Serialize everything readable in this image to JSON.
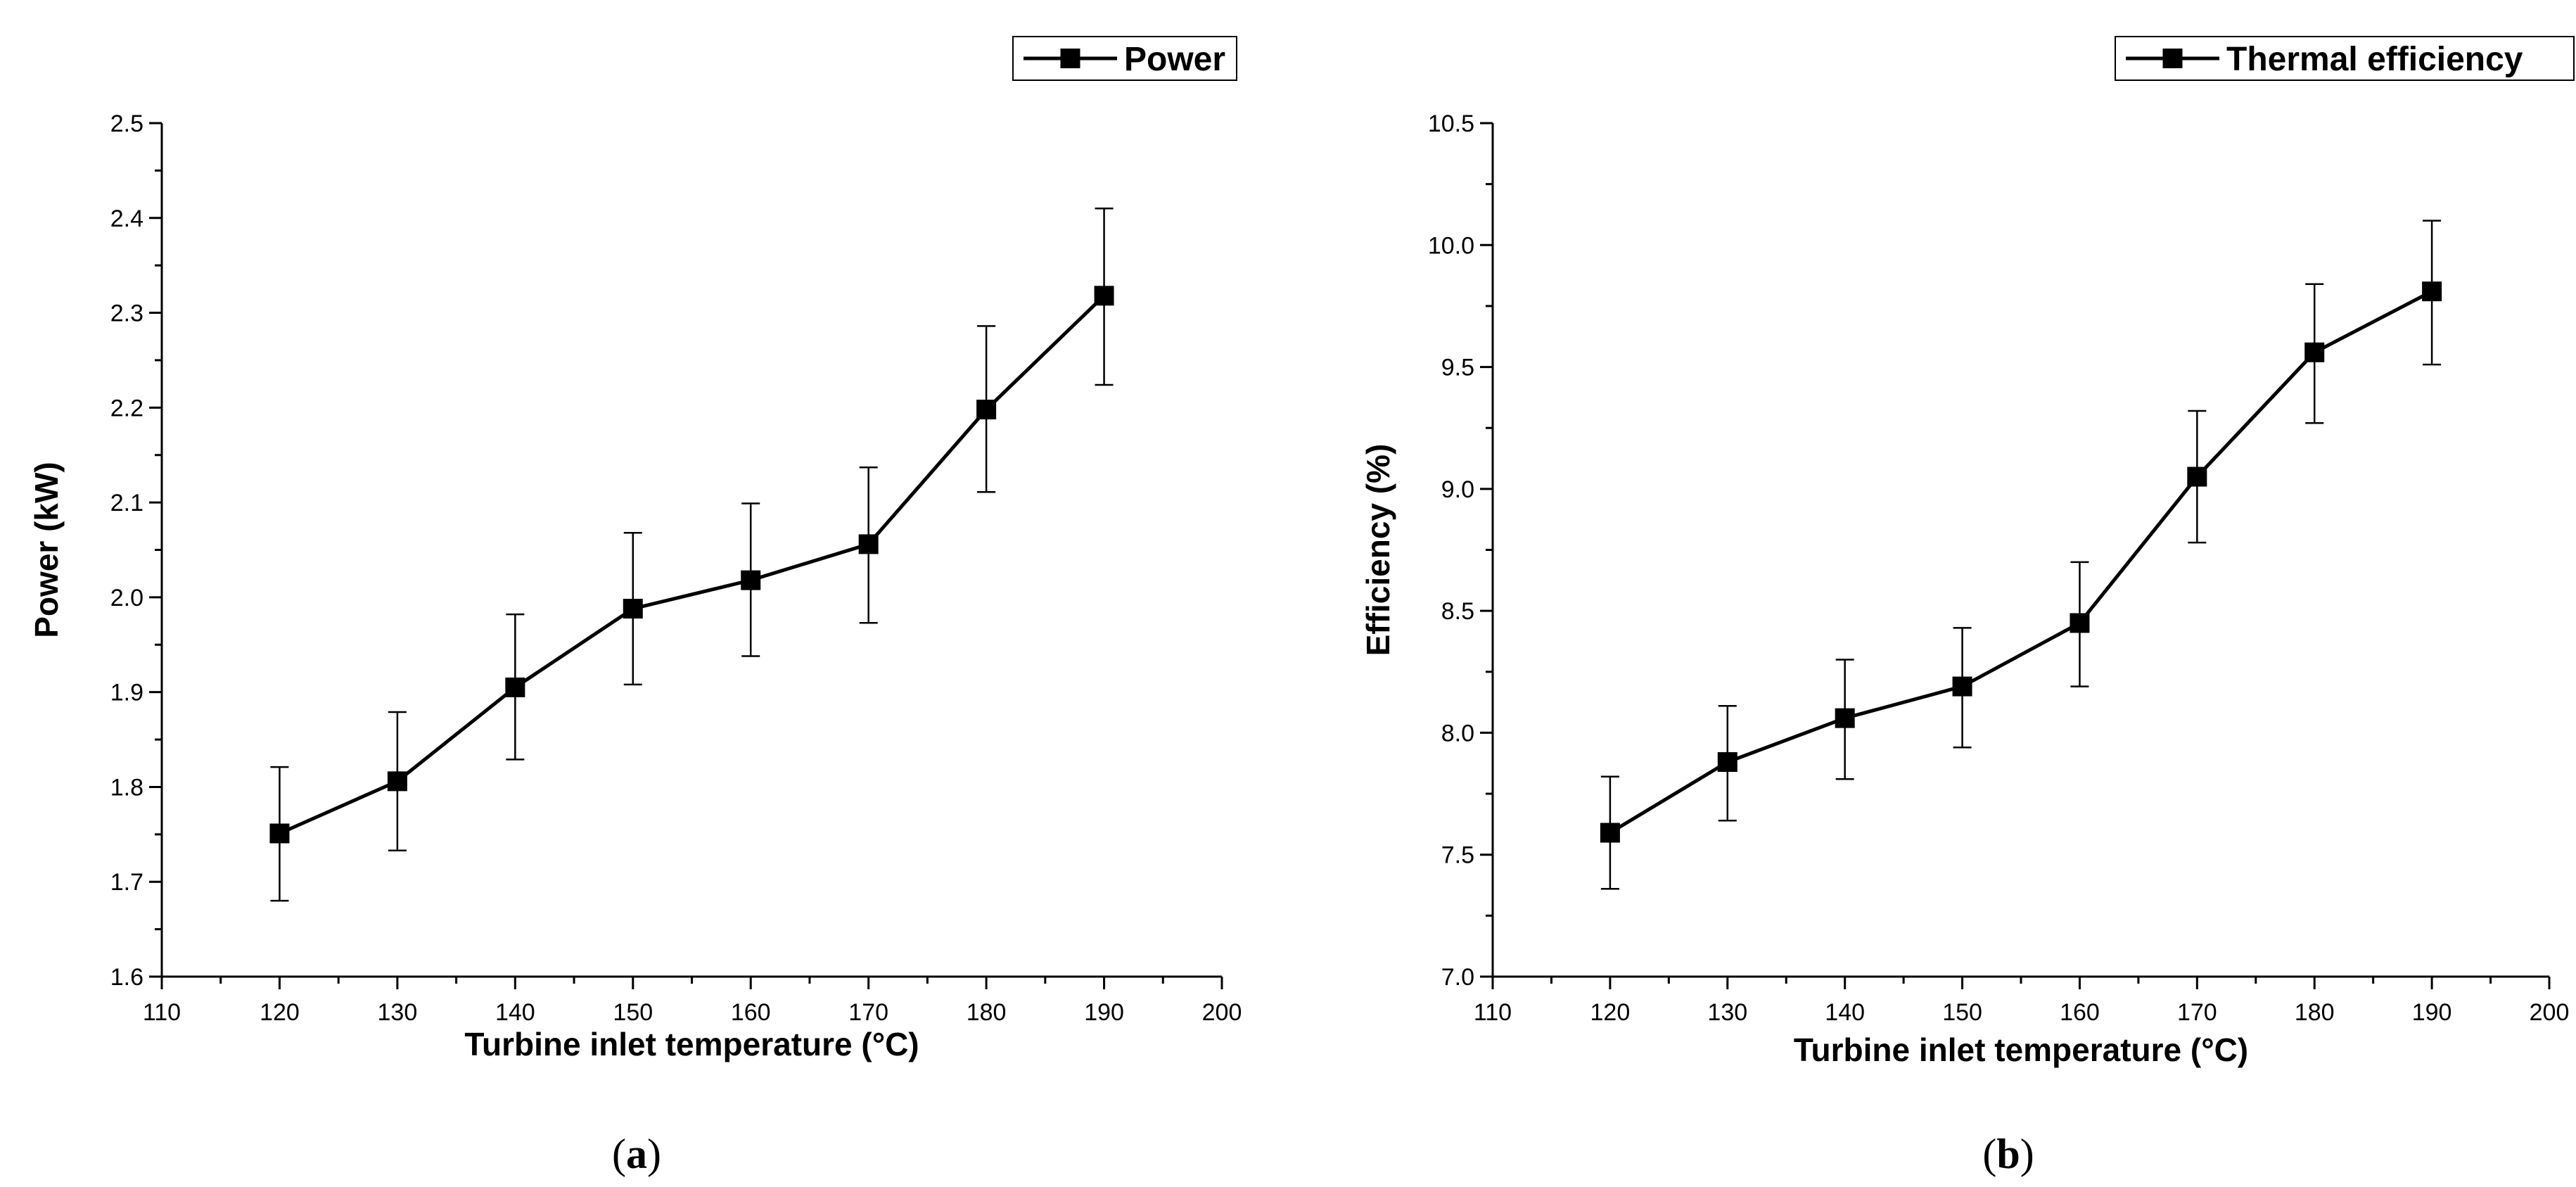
{
  "chart_data": [
    {
      "type": "line",
      "title": "",
      "panel_label": {
        "open": "(",
        "letter": "a",
        "close": ")"
      },
      "xlabel": "Turbine inlet temperature (°C)",
      "ylabel": "Power (kW)",
      "xlim": [
        110,
        200
      ],
      "ylim": [
        1.6,
        2.5
      ],
      "xticks": [
        "110",
        "120",
        "130",
        "140",
        "150",
        "160",
        "170",
        "180",
        "190",
        "200"
      ],
      "yticks": [
        "1.6",
        "1.7",
        "1.8",
        "1.9",
        "2.0",
        "2.1",
        "2.2",
        "2.3",
        "2.4",
        "2.5"
      ],
      "legend": {
        "position": "top-right",
        "entries": [
          "Power"
        ]
      },
      "grid": false,
      "series": [
        {
          "name": "Power",
          "x": [
            120,
            130,
            140,
            150,
            160,
            170,
            180,
            190
          ],
          "y": [
            1.751,
            1.806,
            1.905,
            1.988,
            2.018,
            2.056,
            2.198,
            2.318
          ],
          "err_low": [
            1.68,
            1.733,
            1.829,
            1.908,
            1.938,
            1.973,
            2.111,
            2.224
          ],
          "err_high": [
            1.821,
            1.879,
            1.982,
            2.068,
            2.099,
            2.137,
            2.286,
            2.41
          ]
        }
      ]
    },
    {
      "type": "line",
      "title": "",
      "panel_label": {
        "open": "(",
        "letter": "b",
        "close": ")"
      },
      "xlabel": "Turbine inlet temperature (°C)",
      "ylabel": "Efficiency (%)",
      "xlim": [
        110,
        200
      ],
      "ylim": [
        7.0,
        10.5
      ],
      "xticks": [
        "110",
        "120",
        "130",
        "140",
        "150",
        "160",
        "170",
        "180",
        "190",
        "200"
      ],
      "yticks": [
        "7.0",
        "7.5",
        "8.0",
        "8.5",
        "9.0",
        "9.5",
        "10.0",
        "10.5"
      ],
      "legend": {
        "position": "top-right",
        "entries": [
          "Thermal efficiency"
        ]
      },
      "grid": false,
      "series": [
        {
          "name": "Thermal efficiency",
          "x": [
            120,
            130,
            140,
            150,
            160,
            170,
            180,
            190
          ],
          "y": [
            7.59,
            7.88,
            8.06,
            8.19,
            8.45,
            9.05,
            9.56,
            9.81
          ],
          "err_low": [
            7.36,
            7.64,
            7.81,
            7.94,
            8.19,
            8.78,
            9.27,
            9.51
          ],
          "err_high": [
            7.82,
            8.11,
            8.3,
            8.43,
            8.7,
            9.32,
            9.84,
            10.1
          ]
        }
      ]
    }
  ]
}
